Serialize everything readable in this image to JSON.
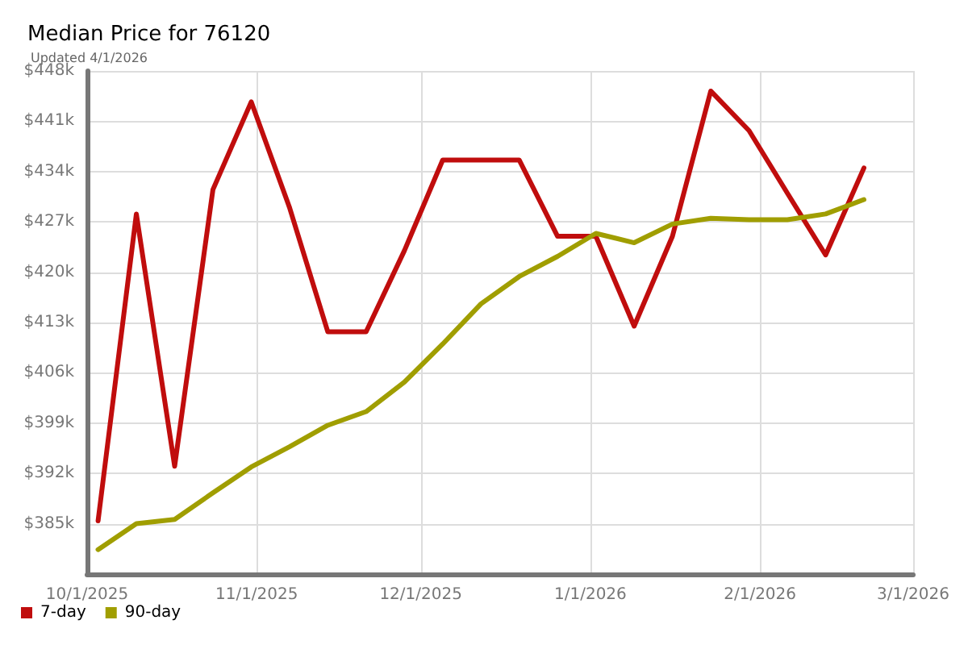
{
  "chart_data": {
    "type": "line",
    "title": "Median Price for 76120",
    "subtitle": "Updated 4/1/2026",
    "x": [
      "2025-10-03",
      "2025-10-10",
      "2025-10-17",
      "2025-10-24",
      "2025-10-31",
      "2025-11-07",
      "2025-11-14",
      "2025-11-21",
      "2025-11-28",
      "2025-12-05",
      "2025-12-12",
      "2025-12-19",
      "2025-12-26",
      "2026-01-02",
      "2026-01-09",
      "2026-01-16",
      "2026-01-23",
      "2026-01-30",
      "2026-02-06",
      "2026-02-13",
      "2026-02-20"
    ],
    "series": [
      {
        "name": "7-day",
        "color": "#c00d0d",
        "values": [
          385.4,
          428.1,
          393,
          431.5,
          443.7,
          429,
          411.7,
          411.7,
          423,
          435.6,
          435.6,
          435.6,
          425,
          425,
          412.5,
          425,
          445.2,
          439.7,
          431,
          422.4,
          434.5
        ]
      },
      {
        "name": "90-day",
        "color": "#a09e00",
        "values": [
          381.4,
          385,
          385.6,
          389.3,
          392.9,
          395.7,
          398.7,
          400.6,
          404.7,
          410,
          415.6,
          419.4,
          422.2,
          425.4,
          424.1,
          426.7,
          427.5,
          427.3,
          427.3,
          428.1,
          430.1
        ]
      }
    ],
    "xlim": [
      "2025-10-01",
      "2026-03-01"
    ],
    "xticks": [
      {
        "value": "2025-10-01",
        "label": "10/1/2025"
      },
      {
        "value": "2025-11-01",
        "label": "11/1/2025"
      },
      {
        "value": "2025-12-01",
        "label": "12/1/2025"
      },
      {
        "value": "2026-01-01",
        "label": "1/1/2026"
      },
      {
        "value": "2026-02-01",
        "label": "2/1/2026"
      },
      {
        "value": "2026-03-01",
        "label": "3/1/2026"
      }
    ],
    "ylim": [
      378,
      448
    ],
    "yticks": [
      {
        "value": 385,
        "label": "$385k"
      },
      {
        "value": 392,
        "label": "$392k"
      },
      {
        "value": 399,
        "label": "$399k"
      },
      {
        "value": 406,
        "label": "$406k"
      },
      {
        "value": 413,
        "label": "$413k"
      },
      {
        "value": 420,
        "label": "$420k"
      },
      {
        "value": 427,
        "label": "$427k"
      },
      {
        "value": 434,
        "label": "$434k"
      },
      {
        "value": 441,
        "label": "$441k"
      },
      {
        "value": 448,
        "label": "$448k"
      }
    ],
    "grid": true,
    "legend": "bottom left",
    "marker": "none",
    "line_style": "solid"
  }
}
